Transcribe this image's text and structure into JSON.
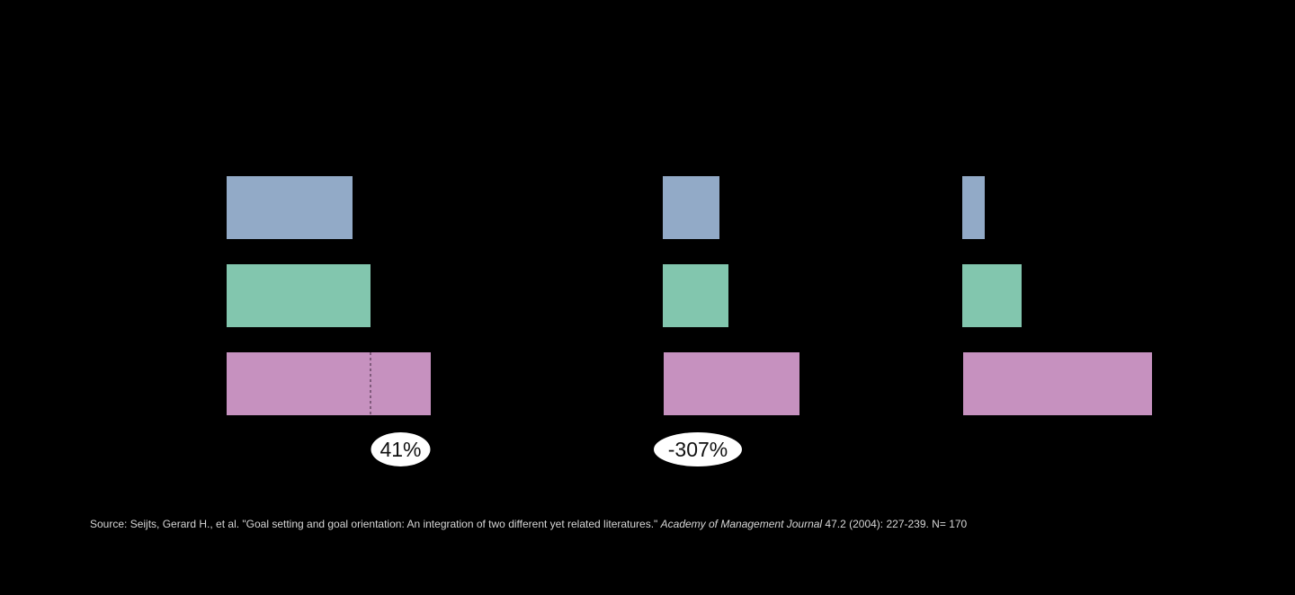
{
  "chart_data": {
    "type": "bar",
    "orientation": "horizontal",
    "panels": [
      {
        "name": "",
        "bars": [
          {
            "value": 140,
            "color": "#92aac7"
          },
          {
            "value": 160,
            "color": "#82c6ae"
          },
          {
            "value": 227,
            "color": "#c691bf",
            "marker_at": 160
          }
        ],
        "badge": "41%"
      },
      {
        "name": "",
        "bars": [
          {
            "value": 63,
            "color": "#92aac7"
          },
          {
            "value": 73,
            "color": "#82c6ae"
          },
          {
            "value": -151,
            "color": "#c691bf"
          }
        ],
        "badge": "-307%"
      },
      {
        "name": "",
        "bars": [
          {
            "value": 25,
            "color": "#92aac7"
          },
          {
            "value": 66,
            "color": "#82c6ae"
          },
          {
            "value": -210,
            "color": "#c691bf"
          }
        ],
        "badge": ""
      }
    ],
    "title": "",
    "xlabel": "",
    "ylabel": "",
    "grid": false,
    "legend": "none"
  },
  "footer": {
    "source_prefix": "Source:  Seijts, Gerard H., et al. \"Goal setting and goal orientation: An integration of two different yet related literatures.\" ",
    "journal": "Academy of Management Journal",
    "source_suffix": " 47.2 (2004): 227-239.  N= 170"
  }
}
